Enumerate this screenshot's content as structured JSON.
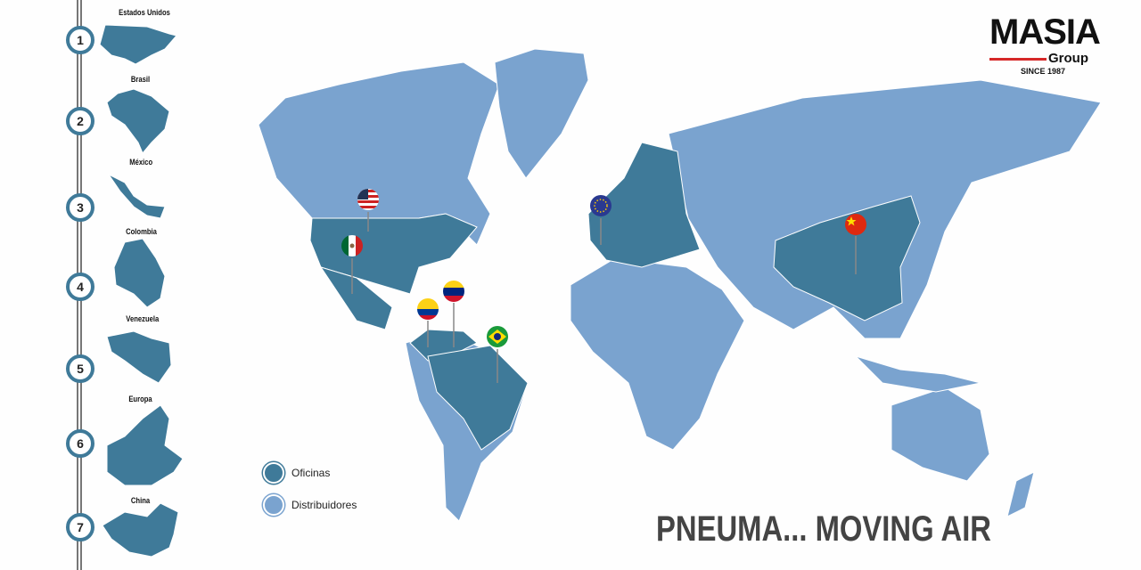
{
  "sidebar": {
    "items": [
      {
        "number": "1",
        "label": "Estados Unidos"
      },
      {
        "number": "2",
        "label": "Brasil"
      },
      {
        "number": "3",
        "label": "México"
      },
      {
        "number": "4",
        "label": "Colombia"
      },
      {
        "number": "5",
        "label": "Venezuela"
      },
      {
        "number": "6",
        "label": "Europa"
      },
      {
        "number": "7",
        "label": "China"
      }
    ]
  },
  "logo": {
    "name": "MASIA",
    "sub": "Group",
    "since": "SINCE 1987"
  },
  "legend": [
    {
      "label": "Oficinas",
      "color": "#3f7a99"
    },
    {
      "label": "Distribuidores",
      "color": "#7aa3cf"
    }
  ],
  "slogan": "PNEUMA... MOVING AIR",
  "colors": {
    "office": "#3f7a99",
    "distributor": "#7aa3cf",
    "accent": "#d62828"
  },
  "pins": [
    {
      "country": "USA",
      "flag": "us-flag-icon"
    },
    {
      "country": "Mexico",
      "flag": "mexico-flag-icon"
    },
    {
      "country": "Colombia",
      "flag": "colombia-flag-icon"
    },
    {
      "country": "Venezuela",
      "flag": "venezuela-flag-icon"
    },
    {
      "country": "Brazil",
      "flag": "brazil-flag-icon"
    },
    {
      "country": "Europe",
      "flag": "eu-flag-icon"
    },
    {
      "country": "China",
      "flag": "china-flag-icon"
    }
  ]
}
